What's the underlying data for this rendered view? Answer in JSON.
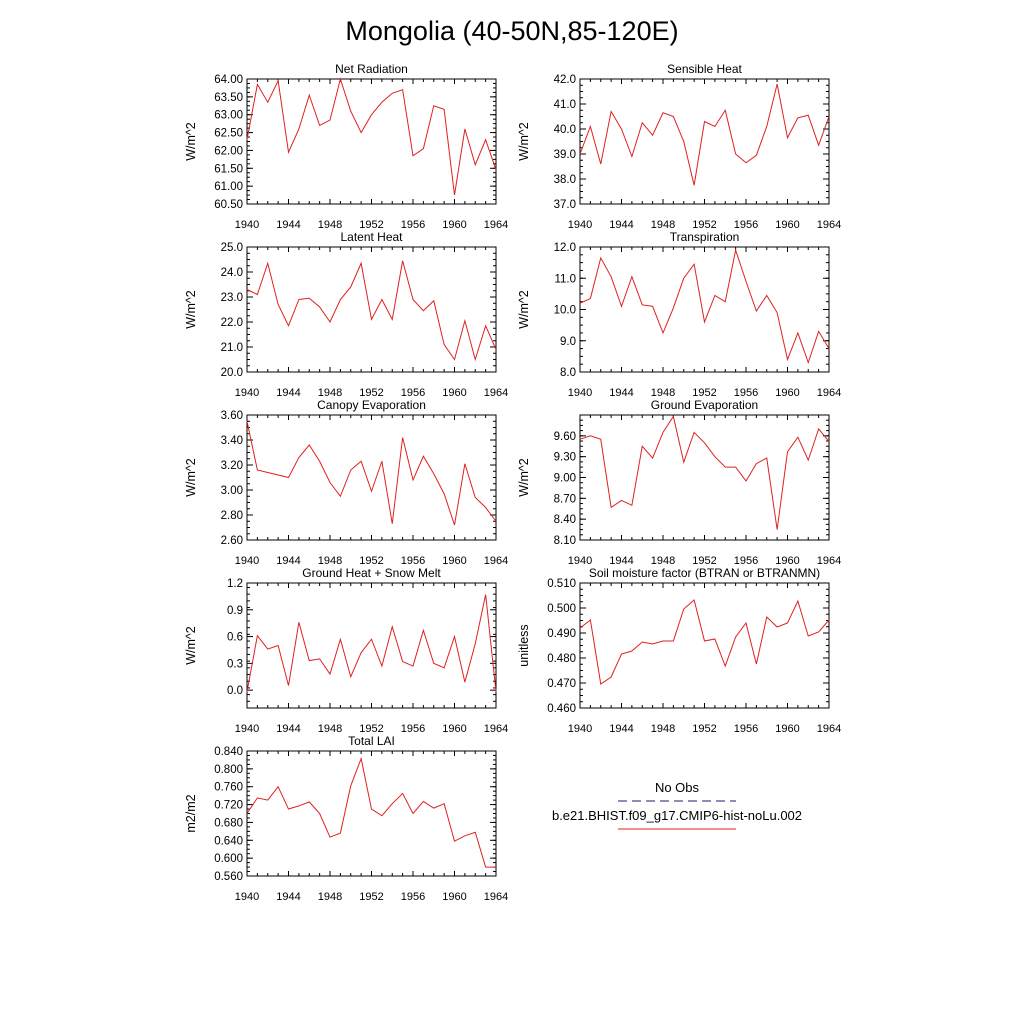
{
  "page_title": "Mongolia (40-50N,85-120E)",
  "legend": {
    "entries": [
      {
        "label": "No Obs",
        "color": "#1a1a6e",
        "dash": true
      },
      {
        "label": "b.e21.BHIST.f09_g17.CMIP6-hist-noLu.002",
        "color": "#e02020",
        "dash": false
      }
    ]
  },
  "chart_data": [
    {
      "type": "line",
      "title": "Net Radiation",
      "xlabel": "",
      "ylabel": "W/m^2",
      "xlim": [
        1940,
        1964
      ],
      "ylim": [
        60.5,
        64.0
      ],
      "xticks": [
        1940,
        1944,
        1948,
        1952,
        1956,
        1960,
        1964
      ],
      "yticks": [
        "60.50",
        "61.00",
        "61.50",
        "62.00",
        "62.50",
        "63.00",
        "63.50",
        "64.00"
      ],
      "x": [
        1940,
        1941,
        1942,
        1943,
        1944,
        1945,
        1946,
        1947,
        1948,
        1949,
        1950,
        1951,
        1952,
        1953,
        1954,
        1955,
        1956,
        1957,
        1958,
        1959,
        1960,
        1961,
        1962,
        1963,
        1964
      ],
      "series": [
        {
          "color": "#e02020",
          "values": [
            62.3,
            63.85,
            63.35,
            63.95,
            61.95,
            62.6,
            63.55,
            62.7,
            62.85,
            64.0,
            63.1,
            62.5,
            63.0,
            63.35,
            63.6,
            63.7,
            61.85,
            62.05,
            63.25,
            63.15,
            60.75,
            62.6,
            61.6,
            62.3,
            61.45
          ]
        }
      ]
    },
    {
      "type": "line",
      "title": "Sensible Heat",
      "xlabel": "",
      "ylabel": "W/m^2",
      "xlim": [
        1940,
        1964
      ],
      "ylim": [
        37.0,
        42.0
      ],
      "xticks": [
        1940,
        1944,
        1948,
        1952,
        1956,
        1960,
        1964
      ],
      "yticks": [
        "37.0",
        "38.0",
        "39.0",
        "40.0",
        "41.0",
        "42.0"
      ],
      "x": [
        1940,
        1941,
        1942,
        1943,
        1944,
        1945,
        1946,
        1947,
        1948,
        1949,
        1950,
        1951,
        1952,
        1953,
        1954,
        1955,
        1956,
        1957,
        1958,
        1959,
        1960,
        1961,
        1962,
        1963,
        1964
      ],
      "series": [
        {
          "color": "#e02020",
          "values": [
            39.0,
            40.1,
            38.6,
            40.7,
            40.0,
            38.9,
            40.25,
            39.75,
            40.65,
            40.5,
            39.5,
            37.75,
            40.3,
            40.1,
            40.75,
            39.0,
            38.65,
            38.95,
            40.1,
            41.8,
            39.65,
            40.45,
            40.55,
            39.35,
            40.5
          ]
        }
      ]
    },
    {
      "type": "line",
      "title": "Latent Heat",
      "xlabel": "",
      "ylabel": "W/m^2",
      "xlim": [
        1940,
        1964
      ],
      "ylim": [
        20.0,
        25.0
      ],
      "xticks": [
        1940,
        1944,
        1948,
        1952,
        1956,
        1960,
        1964
      ],
      "yticks": [
        "20.0",
        "21.0",
        "22.0",
        "23.0",
        "24.0",
        "25.0"
      ],
      "x": [
        1940,
        1941,
        1942,
        1943,
        1944,
        1945,
        1946,
        1947,
        1948,
        1949,
        1950,
        1951,
        1952,
        1953,
        1954,
        1955,
        1956,
        1957,
        1958,
        1959,
        1960,
        1961,
        1962,
        1963,
        1964
      ],
      "series": [
        {
          "color": "#e02020",
          "values": [
            23.3,
            23.1,
            24.35,
            22.7,
            21.85,
            22.9,
            22.95,
            22.6,
            22.0,
            22.9,
            23.4,
            24.35,
            22.1,
            22.9,
            22.1,
            24.45,
            22.9,
            22.45,
            22.85,
            21.1,
            20.5,
            22.05,
            20.5,
            21.85,
            20.9
          ]
        }
      ]
    },
    {
      "type": "line",
      "title": "Transpiration",
      "xlabel": "",
      "ylabel": "W/m^2",
      "xlim": [
        1940,
        1964
      ],
      "ylim": [
        8.0,
        12.0
      ],
      "xticks": [
        1940,
        1944,
        1948,
        1952,
        1956,
        1960,
        1964
      ],
      "yticks": [
        "8.0",
        "9.0",
        "10.0",
        "11.0",
        "12.0"
      ],
      "x": [
        1940,
        1941,
        1942,
        1943,
        1944,
        1945,
        1946,
        1947,
        1948,
        1949,
        1950,
        1951,
        1952,
        1953,
        1954,
        1955,
        1956,
        1957,
        1958,
        1959,
        1960,
        1961,
        1962,
        1963,
        1964
      ],
      "series": [
        {
          "color": "#e02020",
          "values": [
            10.2,
            10.35,
            11.65,
            11.05,
            10.1,
            11.05,
            10.15,
            10.1,
            9.25,
            10.05,
            11.0,
            11.45,
            9.6,
            10.45,
            10.25,
            11.9,
            10.9,
            9.95,
            10.45,
            9.9,
            8.4,
            9.25,
            8.3,
            9.3,
            8.75
          ]
        }
      ]
    },
    {
      "type": "line",
      "title": "Canopy Evaporation",
      "xlabel": "",
      "ylabel": "W/m^2",
      "xlim": [
        1940,
        1964
      ],
      "ylim": [
        2.6,
        3.6
      ],
      "xticks": [
        1940,
        1944,
        1948,
        1952,
        1956,
        1960,
        1964
      ],
      "yticks": [
        "2.60",
        "2.80",
        "3.00",
        "3.20",
        "3.40",
        "3.60"
      ],
      "x": [
        1940,
        1941,
        1942,
        1943,
        1944,
        1945,
        1946,
        1947,
        1948,
        1949,
        1950,
        1951,
        1952,
        1953,
        1954,
        1955,
        1956,
        1957,
        1958,
        1959,
        1960,
        1961,
        1962,
        1963,
        1964
      ],
      "series": [
        {
          "color": "#e02020",
          "values": [
            3.55,
            3.16,
            3.14,
            3.12,
            3.1,
            3.26,
            3.36,
            3.23,
            3.06,
            2.95,
            3.16,
            3.23,
            2.99,
            3.23,
            2.73,
            3.42,
            3.08,
            3.27,
            3.13,
            2.97,
            2.72,
            3.21,
            2.94,
            2.86,
            2.75
          ]
        }
      ]
    },
    {
      "type": "line",
      "title": "Ground Evaporation",
      "xlabel": "",
      "ylabel": "W/m^2",
      "xlim": [
        1940,
        1964
      ],
      "ylim": [
        8.1,
        9.9
      ],
      "xticks": [
        1940,
        1944,
        1948,
        1952,
        1956,
        1960,
        1964
      ],
      "yticks": [
        "8.10",
        "8.40",
        "8.70",
        "9.00",
        "9.30",
        "9.60"
      ],
      "x": [
        1940,
        1941,
        1942,
        1943,
        1944,
        1945,
        1946,
        1947,
        1948,
        1949,
        1950,
        1951,
        1952,
        1953,
        1954,
        1955,
        1956,
        1957,
        1958,
        1959,
        1960,
        1961,
        1962,
        1963,
        1964
      ],
      "series": [
        {
          "color": "#e02020",
          "values": [
            9.55,
            9.6,
            9.55,
            8.57,
            8.67,
            8.6,
            9.45,
            9.28,
            9.65,
            9.88,
            9.22,
            9.65,
            9.5,
            9.3,
            9.15,
            9.15,
            8.95,
            9.2,
            9.28,
            8.25,
            9.37,
            9.58,
            9.25,
            9.7,
            9.52
          ]
        }
      ]
    },
    {
      "type": "line",
      "title": "Ground Heat + Snow Melt",
      "xlabel": "",
      "ylabel": "W/m^2",
      "xlim": [
        1940,
        1964
      ],
      "ylim": [
        -0.2,
        1.2
      ],
      "xticks": [
        1940,
        1944,
        1948,
        1952,
        1956,
        1960,
        1964
      ],
      "yticks": [
        "0.0",
        "0.3",
        "0.6",
        "0.9",
        "1.2"
      ],
      "x": [
        1940,
        1941,
        1942,
        1943,
        1944,
        1945,
        1946,
        1947,
        1948,
        1949,
        1950,
        1951,
        1952,
        1953,
        1954,
        1955,
        1956,
        1957,
        1958,
        1959,
        1960,
        1961,
        1962,
        1963,
        1964
      ],
      "series": [
        {
          "color": "#e02020",
          "values": [
            -0.02,
            0.61,
            0.46,
            0.5,
            0.05,
            0.76,
            0.33,
            0.35,
            0.18,
            0.57,
            0.15,
            0.42,
            0.57,
            0.27,
            0.71,
            0.32,
            0.27,
            0.67,
            0.3,
            0.25,
            0.6,
            0.09,
            0.52,
            1.07,
            -0.02
          ]
        }
      ]
    },
    {
      "type": "line",
      "title": "Soil moisture factor (BTRAN or BTRANMN)",
      "xlabel": "",
      "ylabel": "unitless",
      "xlim": [
        1940,
        1964
      ],
      "ylim": [
        0.46,
        0.51
      ],
      "xticks": [
        1940,
        1944,
        1948,
        1952,
        1956,
        1960,
        1964
      ],
      "yticks": [
        "0.460",
        "0.470",
        "0.480",
        "0.490",
        "0.500",
        "0.510"
      ],
      "x": [
        1940,
        1941,
        1942,
        1943,
        1944,
        1945,
        1946,
        1947,
        1948,
        1949,
        1950,
        1951,
        1952,
        1953,
        1954,
        1955,
        1956,
        1957,
        1958,
        1959,
        1960,
        1961,
        1962,
        1963,
        1964
      ],
      "series": [
        {
          "color": "#e02020",
          "values": [
            0.492,
            0.4952,
            0.4696,
            0.4724,
            0.4816,
            0.4828,
            0.4864,
            0.4856,
            0.4868,
            0.4868,
            0.4996,
            0.5032,
            0.4868,
            0.4876,
            0.4768,
            0.4884,
            0.494,
            0.4776,
            0.4964,
            0.4924,
            0.494,
            0.5028,
            0.4888,
            0.4904,
            0.4952
          ]
        }
      ]
    },
    {
      "type": "line",
      "title": "Total LAI",
      "xlabel": "",
      "ylabel": "m2/m2",
      "xlim": [
        1940,
        1964
      ],
      "ylim": [
        0.56,
        0.84
      ],
      "xticks": [
        1940,
        1944,
        1948,
        1952,
        1956,
        1960,
        1964
      ],
      "yticks": [
        "0.560",
        "0.600",
        "0.640",
        "0.680",
        "0.720",
        "0.760",
        "0.800",
        "0.840"
      ],
      "x": [
        1940,
        1941,
        1942,
        1943,
        1944,
        1945,
        1946,
        1947,
        1948,
        1949,
        1950,
        1951,
        1952,
        1953,
        1954,
        1955,
        1956,
        1957,
        1958,
        1959,
        1960,
        1961,
        1962,
        1963,
        1964
      ],
      "series": [
        {
          "color": "#e02020",
          "values": [
            0.7,
            0.735,
            0.73,
            0.76,
            0.71,
            0.717,
            0.726,
            0.7,
            0.647,
            0.656,
            0.762,
            0.823,
            0.71,
            0.695,
            0.722,
            0.745,
            0.7,
            0.727,
            0.712,
            0.722,
            0.638,
            0.65,
            0.658,
            0.58,
            0.58
          ]
        }
      ]
    }
  ]
}
